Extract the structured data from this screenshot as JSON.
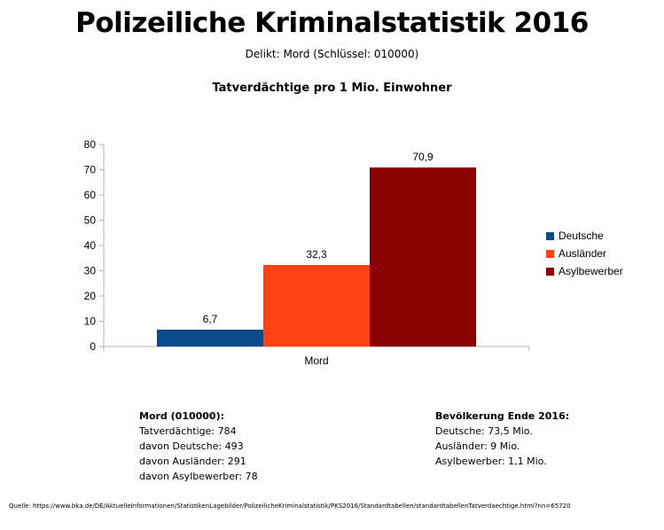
{
  "header": {
    "title": "Polizeiliche Kriminalstatistik 2016",
    "subtitle": "Delikt: Mord (Schlüssel: 010000)"
  },
  "chart_data": {
    "type": "bar",
    "title": "Tatverdächtige pro 1 Mio. Einwohner",
    "categories": [
      "Mord"
    ],
    "series": [
      {
        "name": "Deutsche",
        "values": [
          6.7
        ],
        "label": "6,7",
        "color": "#0b4a8b"
      },
      {
        "name": "Ausländer",
        "values": [
          32.3
        ],
        "label": "32,3",
        "color": "#ff4213"
      },
      {
        "name": "Asylbewerber",
        "values": [
          70.9
        ],
        "label": "70,9",
        "color": "#8b0000"
      }
    ],
    "xlabel": "",
    "ylabel": "",
    "ylim": [
      0,
      80
    ],
    "yticks": [
      "0",
      "10",
      "20",
      "30",
      "40",
      "50",
      "60",
      "70",
      "80"
    ],
    "legend": "right"
  },
  "stats_left": {
    "heading": "Mord (010000):",
    "lines": [
      "Tatverdächtige: 784",
      "davon Deutsche: 493",
      "davon Ausländer: 291",
      "davon Asylbewerber: 78"
    ]
  },
  "stats_right": {
    "heading": "Bevölkerung Ende 2016:",
    "lines": [
      "Deutsche: 73,5 Mio.",
      "Ausländer: 9 Mio.",
      "Asylbewerber: 1,1 Mio."
    ]
  },
  "source": "Quelle: https://www.bka.de/DE/AktuelleInformationen/StatistikenLagebilder/PolizeilicheKriminalstatistik/PKS2016/Standardtabellen/standardtabellenTatverdaechtige.html?nn=65720"
}
